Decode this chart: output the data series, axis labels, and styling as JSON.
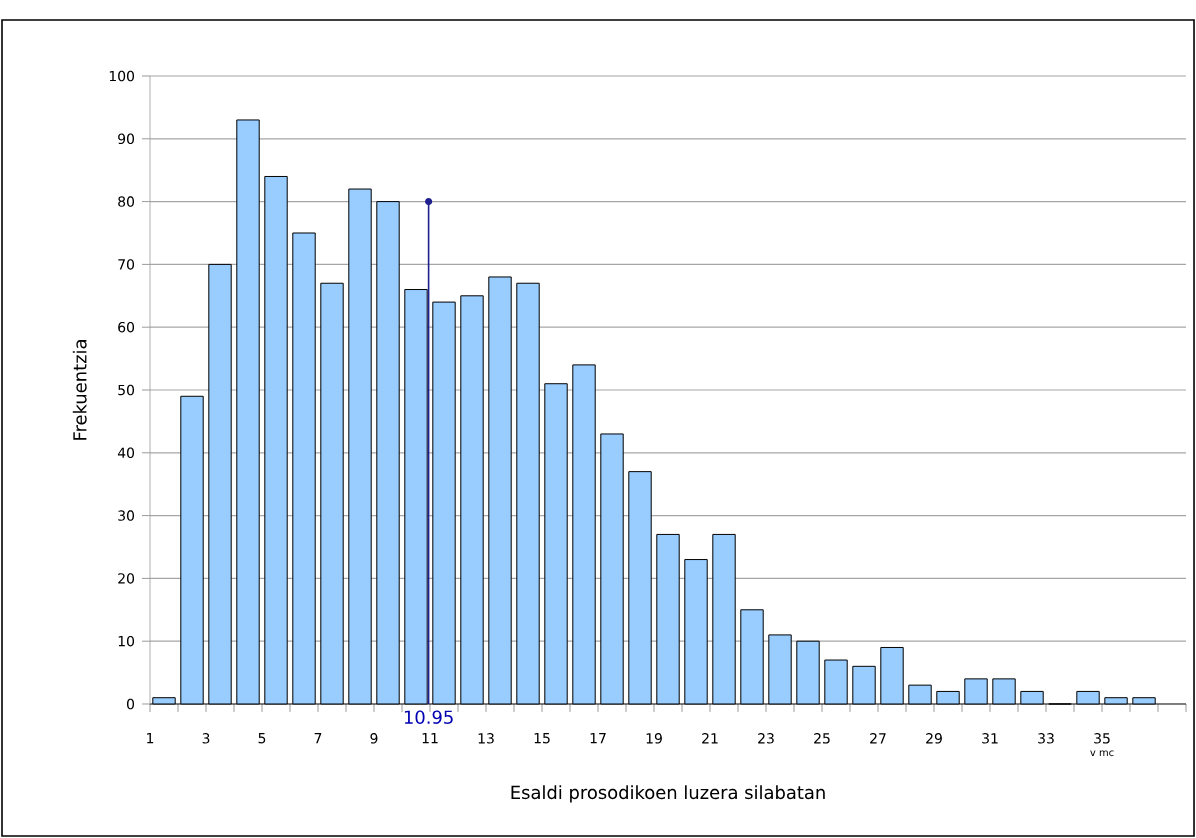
{
  "chart_data": {
    "type": "histogram",
    "xlabel": "Esaldi prosodikoen luzera silabatan",
    "ylabel": "Frekuentzia",
    "bins": [
      1,
      2,
      3,
      4,
      5,
      6,
      7,
      8,
      9,
      10,
      11,
      12,
      13,
      14,
      15,
      16,
      17,
      18,
      19,
      20,
      21,
      22,
      23,
      24,
      25,
      26,
      27,
      28,
      29,
      30,
      31,
      32,
      33,
      34,
      35,
      36,
      37
    ],
    "values": [
      1,
      49,
      70,
      93,
      84,
      75,
      67,
      82,
      80,
      66,
      64,
      65,
      68,
      67,
      51,
      54,
      43,
      37,
      27,
      23,
      27,
      15,
      11,
      10,
      7,
      6,
      9,
      3,
      2,
      4,
      4,
      2,
      0,
      2,
      1,
      1
    ],
    "color": "#99ccff",
    "xlim": [
      1,
      38
    ],
    "xticks": [
      1,
      {
        "value": 2,
        "label": null
      },
      3,
      {
        "value": 4,
        "label": null
      },
      5,
      {
        "value": 6,
        "label": null
      },
      7,
      {
        "value": 8,
        "label": null
      },
      9,
      {
        "value": 10,
        "label": null
      },
      11,
      {
        "value": 12,
        "label": null
      },
      13,
      {
        "value": 14,
        "label": null
      },
      15,
      {
        "value": 16,
        "label": null
      },
      17,
      {
        "value": 18,
        "label": null
      },
      19,
      {
        "value": 20,
        "label": null
      },
      21,
      {
        "value": 22,
        "label": null
      },
      23,
      {
        "value": 24,
        "label": null
      },
      25,
      {
        "value": 26,
        "label": null
      },
      27,
      {
        "value": 28,
        "label": null
      },
      29,
      {
        "value": 30,
        "label": null
      },
      31,
      {
        "value": 32,
        "label": null
      },
      33,
      {
        "value": 34,
        "label": null
      },
      35,
      {
        "value": 36,
        "label": null
      },
      {
        "value": 37,
        "label": null
      },
      {
        "value": 38,
        "label": null
      }
    ],
    "ylim": [
      0,
      100
    ],
    "yticks": [
      0,
      10,
      20,
      30,
      40,
      50,
      60,
      70,
      80,
      90,
      100
    ],
    "grid": "y",
    "annotations": [
      {
        "text": "10.95",
        "x": 10.95,
        "y": 80
      },
      "v mc"
    ]
  }
}
